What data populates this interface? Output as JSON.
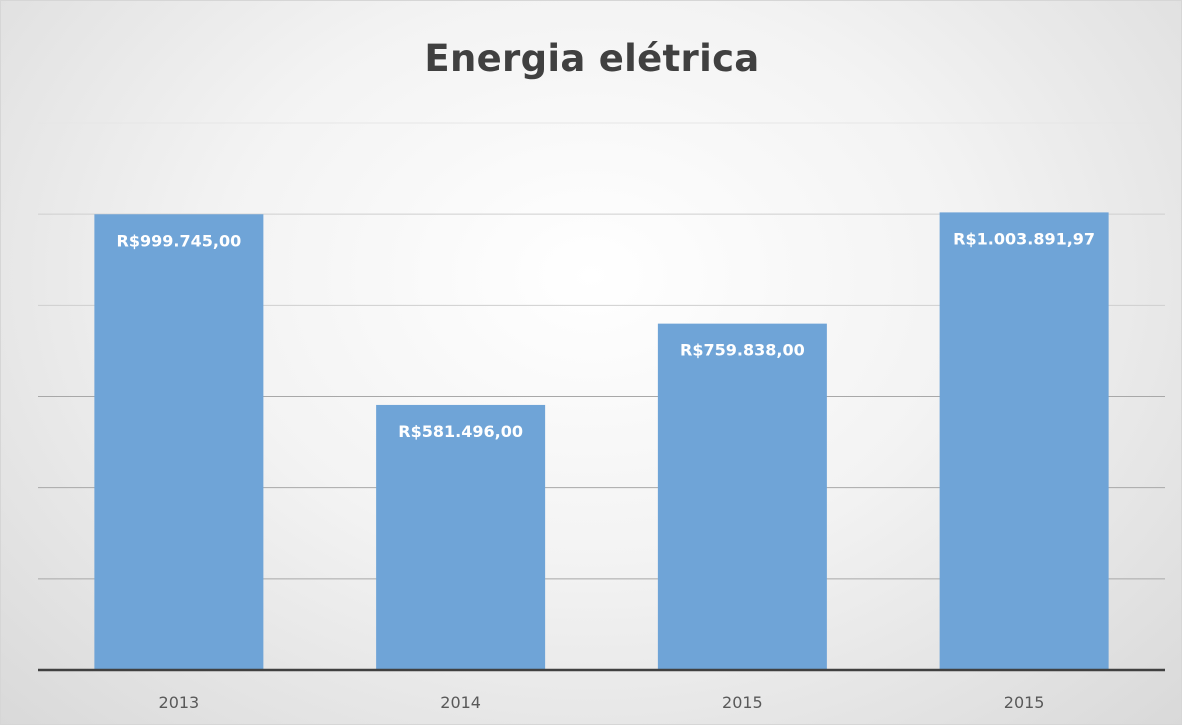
{
  "chart_data": {
    "type": "bar",
    "title": "Energia elétrica",
    "xlabel": "",
    "ylabel": "",
    "categories": [
      "2013",
      "2014",
      "2015",
      "2015"
    ],
    "values": [
      999745.0,
      581496.0,
      759838.0,
      1003891.97
    ],
    "data_labels": [
      "R$999.745,00",
      "R$581.496,00",
      "R$759.838,00",
      "R$1.003.891,97"
    ],
    "ylim": [
      0,
      1200000
    ],
    "gridlines": true,
    "legend": "none",
    "bar_color": "#6fa4d7"
  }
}
